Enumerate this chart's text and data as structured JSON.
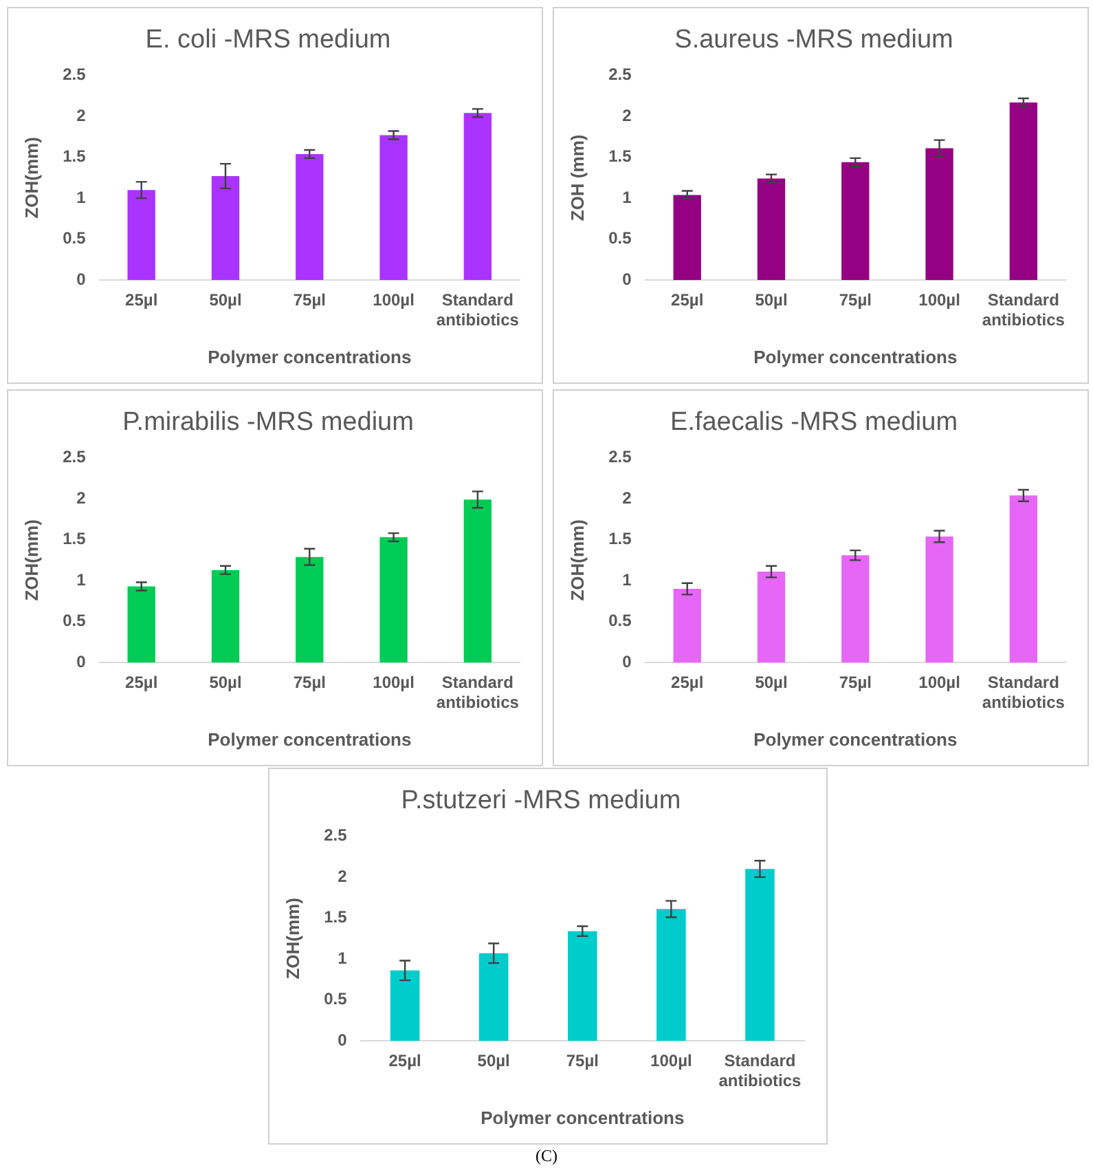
{
  "chart_data": [
    {
      "type": "bar",
      "title": "E. coli -MRS medium",
      "xlabel": "Polymer concentrations",
      "ylabel": "ZOH(mm)",
      "categories": [
        "25µl",
        "50µl",
        "75µl",
        "100µl",
        "Standard antibiotics"
      ],
      "values": [
        1.1,
        1.27,
        1.54,
        1.77,
        2.04
      ],
      "errors": [
        0.1,
        0.15,
        0.05,
        0.05,
        0.05
      ],
      "color": "#aa33ff",
      "ylim": [
        0,
        2.5
      ],
      "yticks": [
        0,
        0.5,
        1,
        1.5,
        2,
        2.5
      ]
    },
    {
      "type": "bar",
      "title": "S.aureus -MRS medium",
      "xlabel": "Polymer concentrations",
      "ylabel": "ZOH (mm)",
      "categories": [
        "25µl",
        "50µl",
        "75µl",
        "100µl",
        "Standard antibiotics"
      ],
      "values": [
        1.04,
        1.24,
        1.44,
        1.61,
        2.17
      ],
      "errors": [
        0.05,
        0.05,
        0.05,
        0.1,
        0.05
      ],
      "color": "#960082",
      "ylim": [
        0,
        2.5
      ],
      "yticks": [
        0,
        0.5,
        1,
        1.5,
        2,
        2.5
      ]
    },
    {
      "type": "bar",
      "title": "P.mirabilis -MRS medium",
      "xlabel": "Polymer concentrations",
      "ylabel": "ZOH(mm)",
      "categories": [
        "25µl",
        "50µl",
        "75µl",
        "100µl",
        "Standard antibiotics"
      ],
      "values": [
        0.93,
        1.13,
        1.29,
        1.53,
        1.99
      ],
      "errors": [
        0.05,
        0.05,
        0.1,
        0.05,
        0.1
      ],
      "color": "#00cc55",
      "ylim": [
        0,
        2.5
      ],
      "yticks": [
        0,
        0.5,
        1,
        1.5,
        2,
        2.5
      ]
    },
    {
      "type": "bar",
      "title": "E.faecalis -MRS medium",
      "xlabel": "Polymer concentrations",
      "ylabel": "ZOH(mm)",
      "categories": [
        "25µl",
        "50µl",
        "75µl",
        "100µl",
        "Standard antibiotics"
      ],
      "values": [
        0.9,
        1.11,
        1.31,
        1.54,
        2.04
      ],
      "errors": [
        0.07,
        0.07,
        0.06,
        0.07,
        0.07
      ],
      "color": "#e566f7",
      "ylim": [
        0,
        2.5
      ],
      "yticks": [
        0,
        0.5,
        1,
        1.5,
        2,
        2.5
      ]
    },
    {
      "type": "bar",
      "title": "P.stutzeri -MRS medium",
      "xlabel": "Polymer concentrations",
      "ylabel": "ZOH(mm)",
      "categories": [
        "25µl",
        "50µl",
        "75µl",
        "100µl",
        "Standard antibiotics"
      ],
      "values": [
        0.86,
        1.07,
        1.34,
        1.61,
        2.1
      ],
      "errors": [
        0.12,
        0.12,
        0.06,
        0.1,
        0.1
      ],
      "color": "#00cccc",
      "ylim": [
        0,
        2.5
      ],
      "yticks": [
        0,
        0.5,
        1,
        1.5,
        2,
        2.5
      ],
      "annotations": [
        "(C)"
      ]
    }
  ]
}
